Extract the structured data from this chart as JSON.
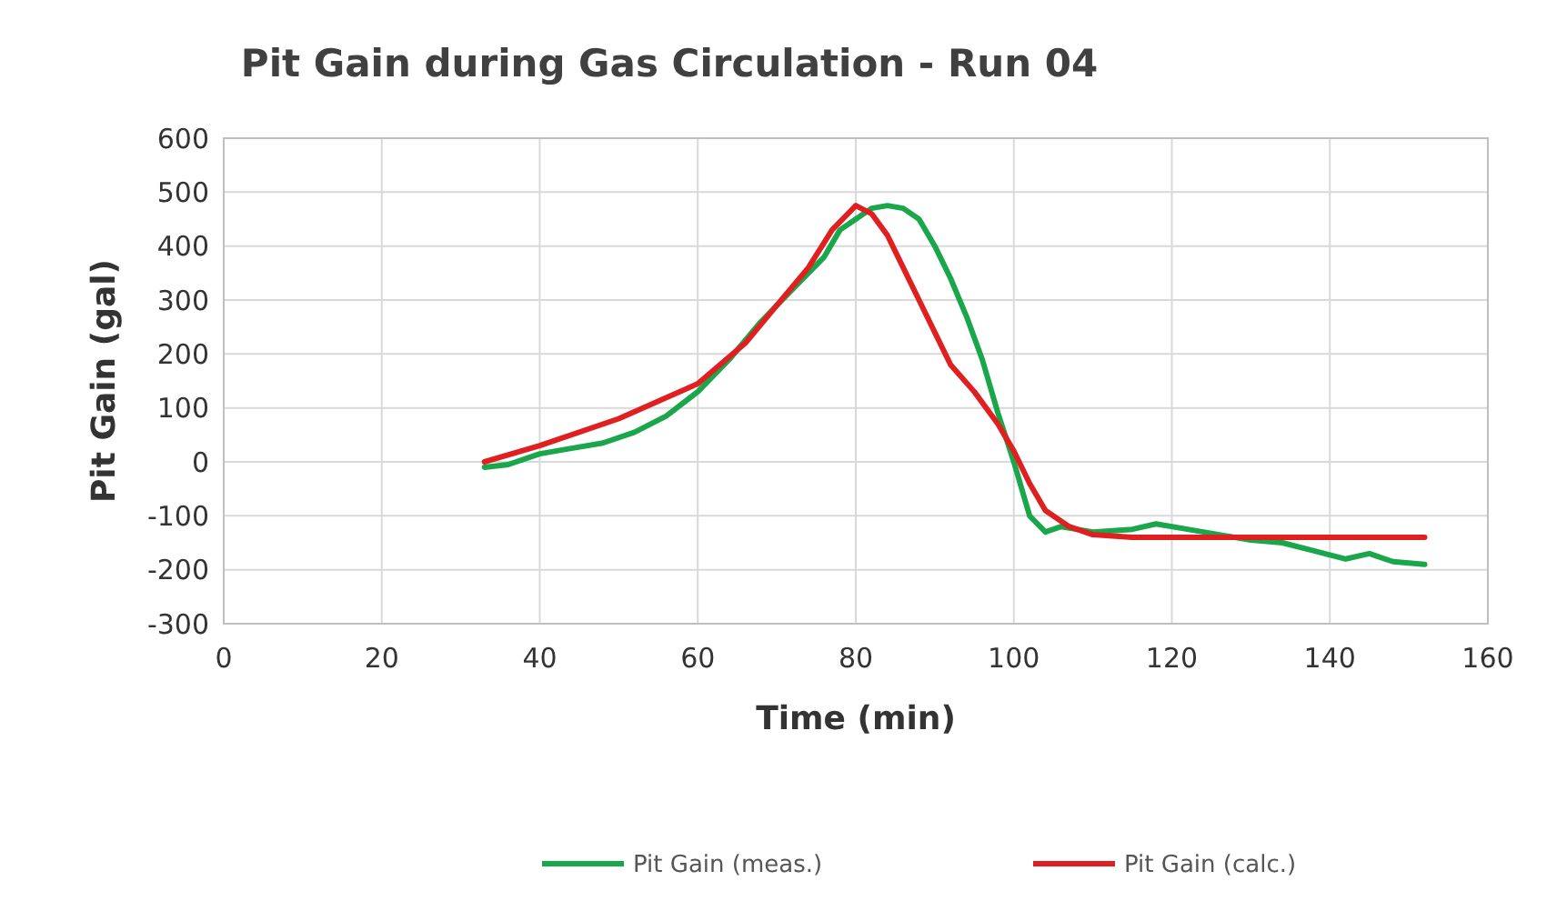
{
  "chart_data": {
    "type": "line",
    "title": "Pit Gain during Gas Circulation - Run 04",
    "xlabel": "Time (min)",
    "ylabel": "Pit Gain (gal)",
    "xlim": [
      0,
      160
    ],
    "xticks": [
      0,
      20,
      40,
      60,
      80,
      100,
      120,
      140,
      160
    ],
    "ylim": [
      -300,
      600
    ],
    "yticks": [
      -300,
      -200,
      -100,
      0,
      100,
      200,
      300,
      400,
      500,
      600
    ],
    "grid": true,
    "legend": "bottom",
    "marker": "none",
    "line_style": "solid",
    "series": [
      {
        "name": "Pit Gain (meas.)",
        "color": "#1aa64a",
        "x": [
          33,
          36,
          40,
          44,
          48,
          52,
          56,
          60,
          64,
          68,
          72,
          76,
          78,
          80,
          82,
          84,
          86,
          88,
          90,
          92,
          94,
          96,
          98,
          100,
          102,
          104,
          106,
          110,
          115,
          118,
          122,
          126,
          130,
          134,
          138,
          142,
          145,
          148,
          152
        ],
        "values": [
          -10,
          -5,
          15,
          25,
          35,
          55,
          85,
          130,
          190,
          260,
          320,
          380,
          430,
          450,
          470,
          475,
          470,
          450,
          400,
          340,
          270,
          190,
          90,
          0,
          -100,
          -130,
          -120,
          -130,
          -125,
          -115,
          -125,
          -135,
          -145,
          -150,
          -165,
          -180,
          -170,
          -185,
          -190
        ]
      },
      {
        "name": "Pit Gain (calc.)",
        "color": "#e02020",
        "x": [
          33,
          40,
          50,
          60,
          66,
          70,
          74,
          77,
          80,
          82,
          84,
          86,
          88,
          90,
          92,
          95,
          98,
          100,
          102,
          104,
          107,
          110,
          115,
          152
        ],
        "values": [
          0,
          30,
          80,
          145,
          220,
          290,
          360,
          430,
          475,
          460,
          420,
          360,
          300,
          240,
          180,
          130,
          70,
          20,
          -40,
          -90,
          -120,
          -135,
          -140,
          -140
        ]
      }
    ]
  }
}
